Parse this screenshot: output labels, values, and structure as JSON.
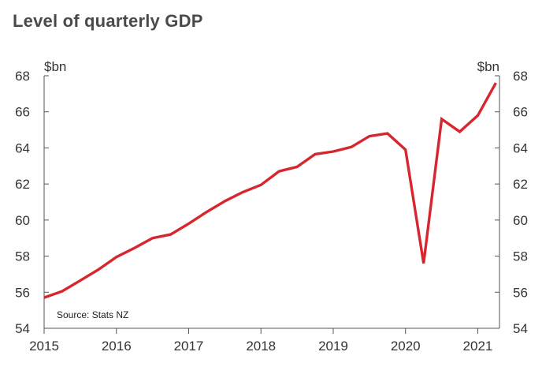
{
  "chart_data": {
    "type": "line",
    "title": "Level of quarterly GDP",
    "ylabel_left": "$bn",
    "ylabel_right": "$bn",
    "source": "Source: Stats NZ",
    "ylim": [
      54,
      68
    ],
    "yticks": [
      54,
      56,
      58,
      60,
      62,
      64,
      66,
      68
    ],
    "xlim": [
      2015,
      2021.3
    ],
    "xticks": [
      2015,
      2016,
      2017,
      2018,
      2019,
      2020,
      2021
    ],
    "grid": false,
    "series": [
      {
        "name": "GDP",
        "color": "#d7262e",
        "x": [
          2015.0,
          2015.25,
          2015.5,
          2015.75,
          2016.0,
          2016.25,
          2016.5,
          2016.75,
          2017.0,
          2017.25,
          2017.5,
          2017.75,
          2018.0,
          2018.25,
          2018.5,
          2018.75,
          2019.0,
          2019.25,
          2019.5,
          2019.75,
          2020.0,
          2020.25,
          2020.5,
          2020.75,
          2021.0,
          2021.25
        ],
        "values": [
          55.7,
          56.05,
          56.65,
          57.25,
          57.95,
          58.45,
          59.0,
          59.2,
          59.8,
          60.45,
          61.05,
          61.55,
          61.95,
          62.7,
          62.95,
          63.65,
          63.8,
          64.05,
          64.65,
          64.8,
          63.9,
          57.6,
          65.6,
          64.9,
          65.8,
          67.6
        ]
      }
    ]
  }
}
